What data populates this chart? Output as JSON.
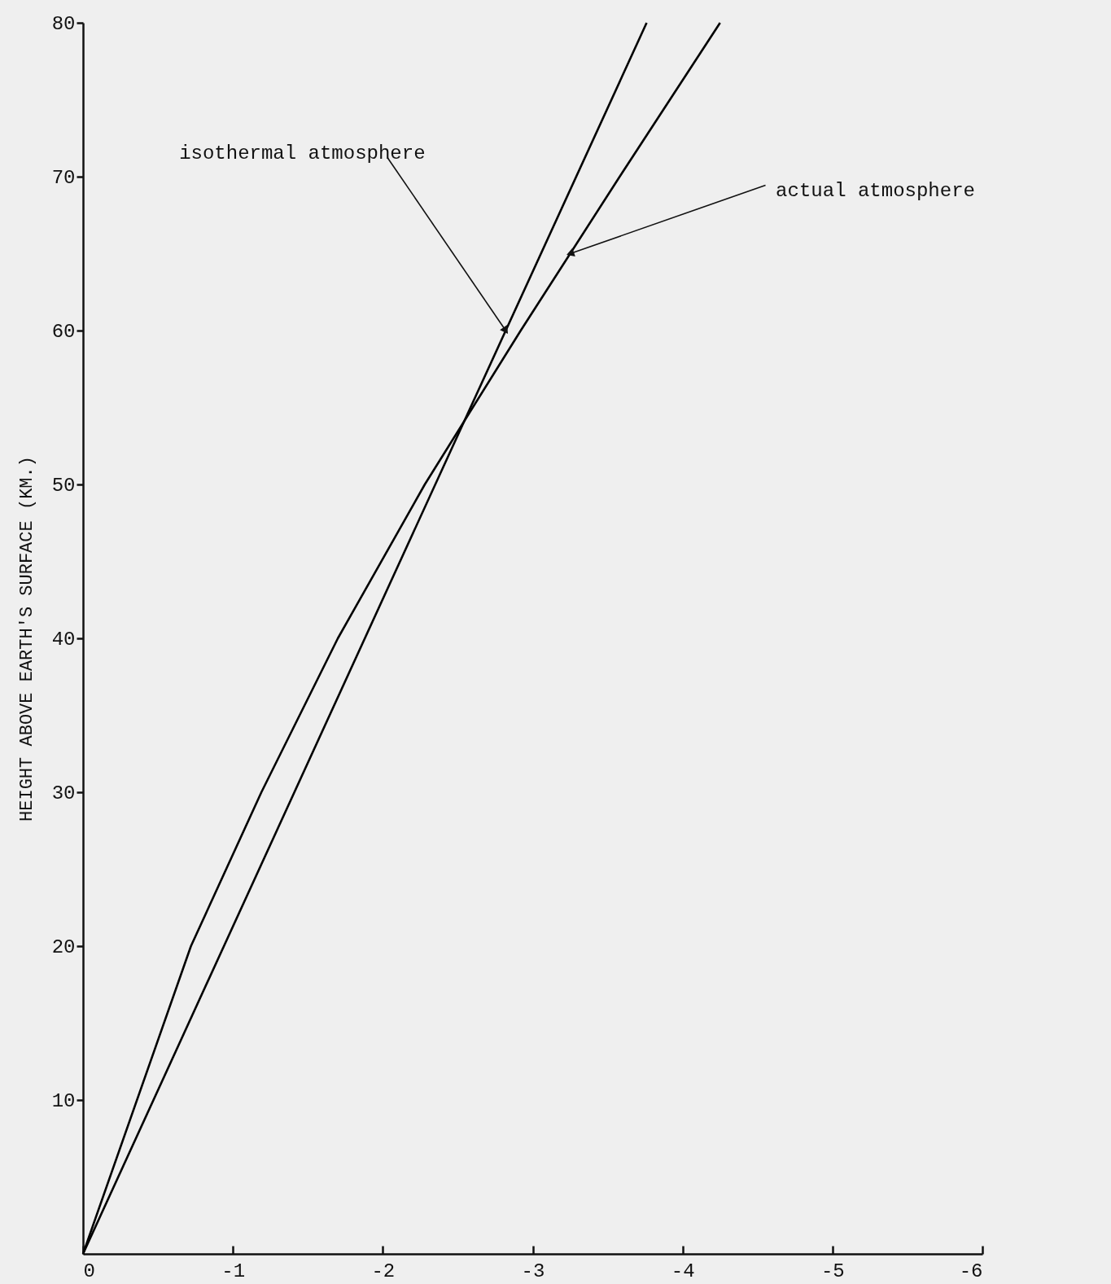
{
  "chart_data": {
    "type": "line",
    "ylabel": "HEIGHT ABOVE EARTH'S SURFACE (KM.)",
    "xlim": [
      0,
      -6
    ],
    "xticks": [
      0,
      -1,
      -2,
      -3,
      -4,
      -5,
      -6
    ],
    "ylim": [
      0,
      80
    ],
    "yticks": [
      10,
      20,
      30,
      40,
      50,
      60,
      70,
      80
    ],
    "grid": false,
    "marker": "none",
    "line_style": "solid",
    "series": [
      {
        "color": "#000000",
        "x": [
          0,
          -3.76
        ],
        "values": [
          0,
          80
        ]
      },
      {
        "color": "#000000",
        "x": [
          0,
          -0.72,
          -1.19,
          -1.7,
          -2.28,
          -2.92,
          -3.58,
          -4.25
        ],
        "values": [
          0,
          20,
          30,
          40,
          50,
          60,
          70,
          80
        ]
      }
    ],
    "annotations": [
      {
        "text": "isothermal atmosphere",
        "x": -2.82,
        "y": 60
      },
      {
        "text": "actual atmosphere",
        "x": -3.25,
        "y": 65
      }
    ]
  }
}
